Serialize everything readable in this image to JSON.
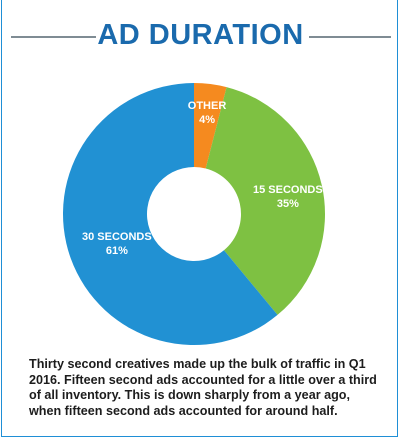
{
  "header": {
    "title": "AD DURATION"
  },
  "chart_data": {
    "type": "pie",
    "donut": true,
    "slices": [
      {
        "label": "OTHER",
        "value": 4,
        "value_label": "4%",
        "color": "#f58a1f"
      },
      {
        "label": "15 SECONDS",
        "value": 35,
        "value_label": "35%",
        "color": "#7ec142"
      },
      {
        "label": "30 SECONDS",
        "value": 61,
        "value_label": "61%",
        "color": "#2191d3"
      }
    ]
  },
  "caption": {
    "text": "Thirty second creatives made up the bulk of traffic in Q1 2016. Fifteen second ads accounted for a little over a third of all inventory. This is down sharply from a year ago, when fifteen second ads accounted for around half."
  }
}
